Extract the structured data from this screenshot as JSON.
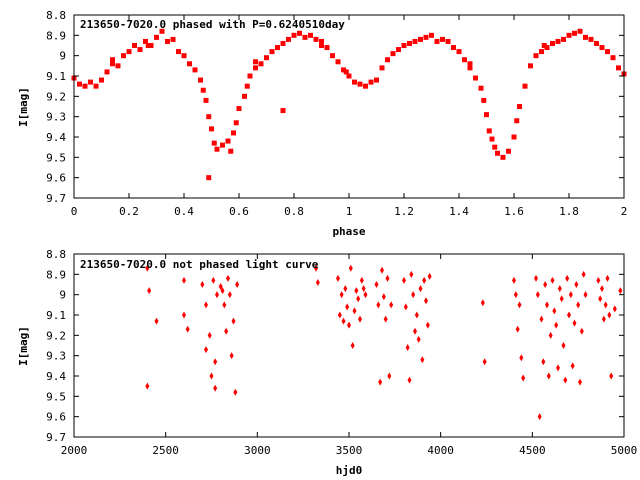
{
  "chart_data": [
    {
      "type": "scatter",
      "title": "213650-7020.0 phased with P=0.6240510day",
      "xlabel": "phase",
      "ylabel": "I[mag]",
      "xlim": [
        0,
        2
      ],
      "ylim": [
        8.8,
        9.7
      ],
      "y_inverted": true,
      "grid": false,
      "marker_color": "#ff0000",
      "marker": "square",
      "x_ticks": [
        "0",
        "0.2",
        "0.4",
        "0.6",
        "0.8",
        "1",
        "1.2",
        "1.4",
        "1.6",
        "1.8",
        "2"
      ],
      "y_ticks": [
        "8.8",
        "8.9",
        "9",
        "9.1",
        "9.2",
        "9.3",
        "9.4",
        "9.5",
        "9.6",
        "9.7"
      ],
      "series": [
        {
          "points": [
            [
              0.0,
              9.11
            ],
            [
              0.02,
              9.14
            ],
            [
              0.04,
              9.15
            ],
            [
              0.06,
              9.13
            ],
            [
              0.08,
              9.15
            ],
            [
              0.1,
              9.12
            ],
            [
              0.12,
              9.08
            ],
            [
              0.14,
              9.04
            ],
            [
              0.16,
              9.05
            ],
            [
              0.18,
              9.0
            ],
            [
              0.2,
              8.98
            ],
            [
              0.22,
              8.95
            ],
            [
              0.24,
              8.97
            ],
            [
              0.26,
              8.93
            ],
            [
              0.28,
              8.95
            ],
            [
              0.3,
              8.91
            ],
            [
              0.32,
              8.88
            ],
            [
              0.34,
              8.93
            ],
            [
              0.36,
              8.92
            ],
            [
              0.38,
              8.98
            ],
            [
              0.4,
              9.0
            ],
            [
              0.42,
              9.04
            ],
            [
              0.44,
              9.07
            ],
            [
              0.46,
              9.12
            ],
            [
              0.47,
              9.17
            ],
            [
              0.48,
              9.22
            ],
            [
              0.49,
              9.3
            ],
            [
              0.5,
              9.36
            ],
            [
              0.51,
              9.43
            ],
            [
              0.52,
              9.46
            ],
            [
              0.54,
              9.44
            ],
            [
              0.56,
              9.42
            ],
            [
              0.57,
              9.47
            ],
            [
              0.58,
              9.38
            ],
            [
              0.59,
              9.33
            ],
            [
              0.6,
              9.26
            ],
            [
              0.62,
              9.2
            ],
            [
              0.63,
              9.15
            ],
            [
              0.64,
              9.1
            ],
            [
              0.66,
              9.06
            ],
            [
              0.68,
              9.04
            ],
            [
              0.7,
              9.01
            ],
            [
              0.72,
              8.98
            ],
            [
              0.74,
              8.96
            ],
            [
              0.76,
              8.94
            ],
            [
              0.78,
              8.92
            ],
            [
              0.8,
              8.9
            ],
            [
              0.82,
              8.89
            ],
            [
              0.84,
              8.91
            ],
            [
              0.86,
              8.9
            ],
            [
              0.88,
              8.92
            ],
            [
              0.9,
              8.93
            ],
            [
              0.92,
              8.96
            ],
            [
              0.94,
              9.0
            ],
            [
              0.96,
              9.03
            ],
            [
              0.98,
              9.07
            ],
            [
              1.0,
              9.1
            ],
            [
              1.02,
              9.13
            ],
            [
              1.04,
              9.14
            ],
            [
              1.06,
              9.15
            ],
            [
              1.08,
              9.13
            ],
            [
              1.1,
              9.12
            ],
            [
              1.12,
              9.06
            ],
            [
              1.14,
              9.02
            ],
            [
              1.16,
              8.99
            ],
            [
              1.18,
              8.97
            ],
            [
              1.2,
              8.95
            ],
            [
              1.22,
              8.94
            ],
            [
              1.24,
              8.93
            ],
            [
              1.26,
              8.92
            ],
            [
              1.28,
              8.91
            ],
            [
              1.3,
              8.9
            ],
            [
              1.32,
              8.93
            ],
            [
              1.34,
              8.92
            ],
            [
              1.36,
              8.93
            ],
            [
              1.38,
              8.96
            ],
            [
              1.4,
              8.98
            ],
            [
              1.42,
              9.02
            ],
            [
              1.44,
              9.06
            ],
            [
              1.46,
              9.11
            ],
            [
              1.48,
              9.16
            ],
            [
              1.49,
              9.22
            ],
            [
              1.5,
              9.29
            ],
            [
              1.51,
              9.37
            ],
            [
              1.52,
              9.41
            ],
            [
              1.53,
              9.45
            ],
            [
              1.54,
              9.48
            ],
            [
              1.56,
              9.5
            ],
            [
              1.58,
              9.47
            ],
            [
              1.6,
              9.4
            ],
            [
              1.61,
              9.32
            ],
            [
              1.62,
              9.25
            ],
            [
              1.64,
              9.15
            ],
            [
              1.66,
              9.05
            ],
            [
              1.68,
              9.0
            ],
            [
              1.7,
              8.98
            ],
            [
              1.72,
              8.96
            ],
            [
              1.74,
              8.94
            ],
            [
              1.76,
              8.93
            ],
            [
              1.78,
              8.92
            ],
            [
              1.8,
              8.9
            ],
            [
              1.82,
              8.89
            ],
            [
              1.84,
              8.88
            ],
            [
              1.86,
              8.91
            ],
            [
              1.88,
              8.92
            ],
            [
              1.9,
              8.94
            ],
            [
              1.92,
              8.96
            ],
            [
              1.94,
              8.98
            ],
            [
              1.96,
              9.01
            ],
            [
              1.98,
              9.06
            ],
            [
              2.0,
              9.09
            ],
            [
              0.49,
              9.6
            ],
            [
              0.76,
              9.27
            ],
            [
              0.14,
              9.02
            ],
            [
              0.27,
              8.95
            ],
            [
              0.66,
              9.03
            ],
            [
              0.99,
              9.08
            ],
            [
              1.44,
              9.04
            ],
            [
              1.71,
              8.95
            ],
            [
              0.9,
              8.95
            ]
          ]
        }
      ]
    },
    {
      "type": "scatter",
      "title": "213650-7020.0 not phased light curve",
      "xlabel": "hjd0",
      "ylabel": "I[mag]",
      "xlim": [
        2000,
        5000
      ],
      "ylim": [
        8.8,
        9.7
      ],
      "y_inverted": true,
      "grid": false,
      "marker_color": "#ff0000",
      "marker": "diamond",
      "x_ticks": [
        "2000",
        "2500",
        "3000",
        "3500",
        "4000",
        "4500",
        "5000"
      ],
      "y_ticks": [
        "8.8",
        "8.9",
        "9",
        "9.1",
        "9.2",
        "9.3",
        "9.4",
        "9.5",
        "9.6",
        "9.7"
      ],
      "series": [
        {
          "points": [
            [
              2400,
              8.87
            ],
            [
              2410,
              8.98
            ],
            [
              2400,
              9.45
            ],
            [
              2450,
              9.13
            ],
            [
              2600,
              8.93
            ],
            [
              2600,
              9.1
            ],
            [
              2620,
              9.17
            ],
            [
              2700,
              8.95
            ],
            [
              2720,
              9.05
            ],
            [
              2720,
              9.27
            ],
            [
              2740,
              9.2
            ],
            [
              2750,
              9.4
            ],
            [
              2760,
              8.93
            ],
            [
              2770,
              9.33
            ],
            [
              2770,
              9.46
            ],
            [
              2780,
              9.0
            ],
            [
              2800,
              8.96
            ],
            [
              2810,
              8.98
            ],
            [
              2820,
              9.05
            ],
            [
              2830,
              9.18
            ],
            [
              2840,
              8.92
            ],
            [
              2850,
              9.0
            ],
            [
              2860,
              9.3
            ],
            [
              2870,
              9.13
            ],
            [
              2880,
              9.48
            ],
            [
              2890,
              8.95
            ],
            [
              3320,
              8.87
            ],
            [
              3330,
              8.94
            ],
            [
              3440,
              8.92
            ],
            [
              3450,
              9.1
            ],
            [
              3460,
              9.0
            ],
            [
              3470,
              9.13
            ],
            [
              3480,
              8.97
            ],
            [
              3490,
              9.06
            ],
            [
              3500,
              9.15
            ],
            [
              3510,
              8.87
            ],
            [
              3520,
              9.25
            ],
            [
              3530,
              9.08
            ],
            [
              3540,
              8.98
            ],
            [
              3550,
              9.02
            ],
            [
              3560,
              9.12
            ],
            [
              3570,
              8.93
            ],
            [
              3580,
              8.97
            ],
            [
              3590,
              9.0
            ],
            [
              3650,
              8.95
            ],
            [
              3660,
              9.05
            ],
            [
              3670,
              9.43
            ],
            [
              3680,
              8.88
            ],
            [
              3690,
              9.01
            ],
            [
              3700,
              9.12
            ],
            [
              3710,
              8.92
            ],
            [
              3720,
              9.4
            ],
            [
              3730,
              9.05
            ],
            [
              3800,
              8.93
            ],
            [
              3810,
              9.06
            ],
            [
              3820,
              9.26
            ],
            [
              3830,
              9.42
            ],
            [
              3840,
              8.9
            ],
            [
              3850,
              9.0
            ],
            [
              3860,
              9.18
            ],
            [
              3870,
              9.1
            ],
            [
              3880,
              9.22
            ],
            [
              3890,
              8.97
            ],
            [
              3900,
              9.32
            ],
            [
              3910,
              8.93
            ],
            [
              3920,
              9.03
            ],
            [
              3930,
              9.15
            ],
            [
              3940,
              8.91
            ],
            [
              4230,
              9.04
            ],
            [
              4240,
              9.33
            ],
            [
              4400,
              8.93
            ],
            [
              4410,
              9.0
            ],
            [
              4420,
              9.17
            ],
            [
              4430,
              9.05
            ],
            [
              4440,
              9.31
            ],
            [
              4450,
              9.41
            ],
            [
              4520,
              8.92
            ],
            [
              4530,
              9.0
            ],
            [
              4540,
              9.6
            ],
            [
              4550,
              9.12
            ],
            [
              4560,
              9.33
            ],
            [
              4570,
              8.95
            ],
            [
              4580,
              9.05
            ],
            [
              4590,
              9.4
            ],
            [
              4600,
              9.2
            ],
            [
              4610,
              8.93
            ],
            [
              4620,
              9.08
            ],
            [
              4630,
              9.15
            ],
            [
              4640,
              9.36
            ],
            [
              4650,
              8.97
            ],
            [
              4660,
              9.02
            ],
            [
              4670,
              9.25
            ],
            [
              4680,
              9.42
            ],
            [
              4690,
              8.92
            ],
            [
              4700,
              9.1
            ],
            [
              4710,
              9.0
            ],
            [
              4720,
              9.35
            ],
            [
              4730,
              9.14
            ],
            [
              4740,
              8.95
            ],
            [
              4750,
              9.05
            ],
            [
              4760,
              9.43
            ],
            [
              4770,
              9.18
            ],
            [
              4780,
              8.9
            ],
            [
              4790,
              9.0
            ],
            [
              4860,
              8.93
            ],
            [
              4870,
              9.02
            ],
            [
              4880,
              8.97
            ],
            [
              4890,
              9.12
            ],
            [
              4900,
              9.05
            ],
            [
              4910,
              8.92
            ],
            [
              4920,
              9.1
            ],
            [
              4930,
              9.4
            ],
            [
              4950,
              9.07
            ],
            [
              4980,
              8.98
            ]
          ]
        }
      ]
    }
  ]
}
